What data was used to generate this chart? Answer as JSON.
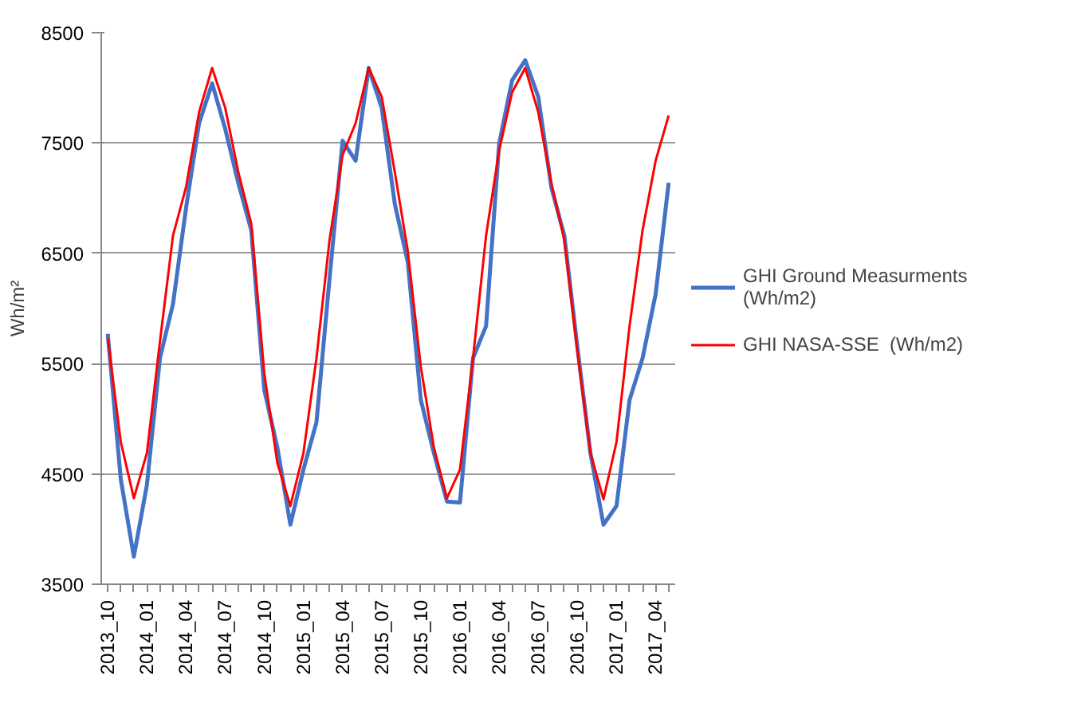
{
  "chart_data": {
    "type": "line",
    "ylabel": "Wh/m²",
    "categories": [
      "2013_10",
      null,
      null,
      "2014_01",
      null,
      null,
      "2014_04",
      null,
      null,
      "2014_07",
      null,
      null,
      "2014_10",
      null,
      null,
      "2015_01",
      null,
      null,
      "2015_04",
      null,
      null,
      "2015_07",
      null,
      null,
      "2015_10",
      null,
      null,
      "2016_01",
      null,
      null,
      "2016_04",
      null,
      null,
      "2016_07",
      null,
      null,
      "2016_10",
      null,
      null,
      "2017_01",
      null,
      null,
      "2017_04",
      null
    ],
    "series": [
      {
        "name": "GHI Ground Measurments (Wh/m2)",
        "color": "#4472c4",
        "values": [
          5770,
          4450,
          3750,
          4400,
          5550,
          6040,
          6910,
          7680,
          8040,
          7630,
          7140,
          6710,
          5260,
          4740,
          4040,
          4540,
          4970,
          6270,
          7520,
          7340,
          8180,
          7820,
          6950,
          6420,
          5170,
          4690,
          4250,
          4240,
          5550,
          5840,
          7490,
          8070,
          8250,
          7920,
          7100,
          6660,
          5650,
          4690,
          4040,
          4210,
          5170,
          5550,
          6130,
          7140
        ]
      },
      {
        "name": "GHI NASA-SSE  (Wh/m2)",
        "color": "#ff0000",
        "values": [
          5730,
          4790,
          4280,
          4690,
          5700,
          6660,
          7100,
          7780,
          8180,
          7820,
          7240,
          6770,
          5410,
          4600,
          4210,
          4690,
          5550,
          6620,
          7390,
          7680,
          8180,
          7920,
          7240,
          6520,
          5470,
          4740,
          4280,
          4540,
          5550,
          6660,
          7430,
          7960,
          8180,
          7780,
          7140,
          6620,
          5610,
          4690,
          4270,
          4790,
          5840,
          6710,
          7340,
          7750
        ]
      }
    ],
    "ylim": [
      3500,
      8500
    ],
    "yticks": [
      3500,
      4500,
      5500,
      6500,
      7500,
      8500
    ],
    "grid": "y",
    "legend": "right",
    "marker": "none",
    "line_style": "solid"
  }
}
